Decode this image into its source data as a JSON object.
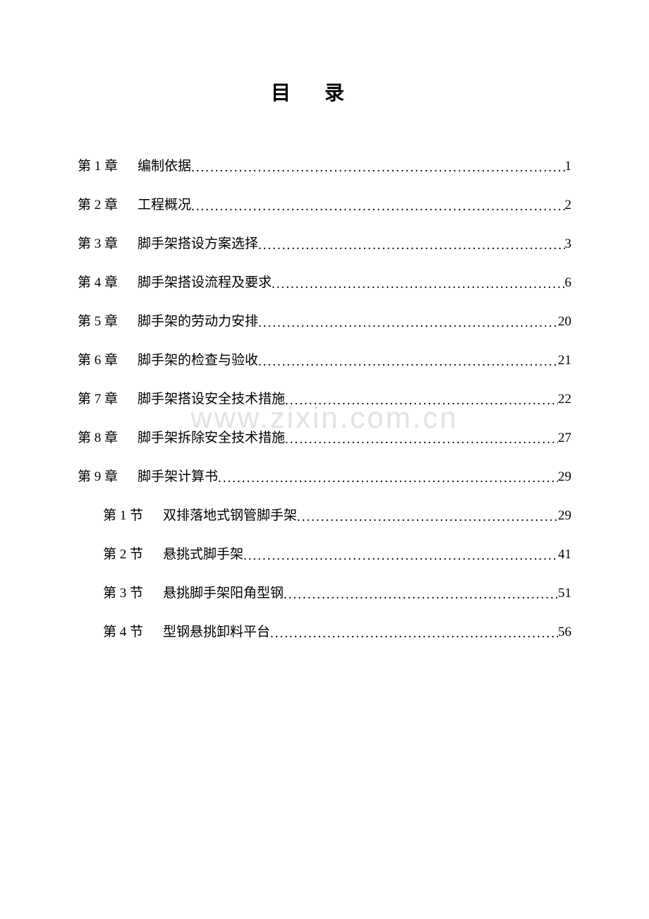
{
  "title": "目录",
  "watermark": "www.zixin.com.cn",
  "colors": {
    "background": "#ffffff",
    "text": "#000000",
    "watermark": "#e3e3e3"
  },
  "typography": {
    "title_fontsize": 28,
    "entry_fontsize": 19,
    "watermark_fontsize": 42,
    "font_family": "SimSun"
  },
  "toc": {
    "chapters": [
      {
        "label": "第 1 章",
        "title": "编制依据",
        "page": "1",
        "indent": false
      },
      {
        "label": "第 2 章",
        "title": "工程概况",
        "page": "2",
        "indent": false
      },
      {
        "label": "第 3 章",
        "title": "脚手架搭设方案选择",
        "page": "3",
        "indent": false
      },
      {
        "label": "第 4 章",
        "title": "脚手架搭设流程及要求",
        "page": "6",
        "indent": false
      },
      {
        "label": "第 5 章",
        "title": "脚手架的劳动力安排",
        "page": "20",
        "indent": false
      },
      {
        "label": "第 6 章",
        "title": "脚手架的检查与验收",
        "page": "21",
        "indent": false
      },
      {
        "label": "第 7 章",
        "title": "脚手架搭设安全技术措施",
        "page": "22",
        "indent": false
      },
      {
        "label": "第 8 章",
        "title": "脚手架拆除安全技术措施",
        "page": "27",
        "indent": false
      },
      {
        "label": "第 9 章",
        "title": "脚手架计算书",
        "page": "29",
        "indent": false
      },
      {
        "label": "第 1 节",
        "title": "双排落地式钢管脚手架",
        "page": "29",
        "indent": true
      },
      {
        "label": "第 2 节",
        "title": "悬挑式脚手架",
        "page": "41",
        "indent": true
      },
      {
        "label": "第 3 节",
        "title": "悬挑脚手架阳角型钢",
        "page": "51",
        "indent": true
      },
      {
        "label": "第 4 节",
        "title": "型钢悬挑卸料平台",
        "page": "56",
        "indent": true
      }
    ]
  }
}
